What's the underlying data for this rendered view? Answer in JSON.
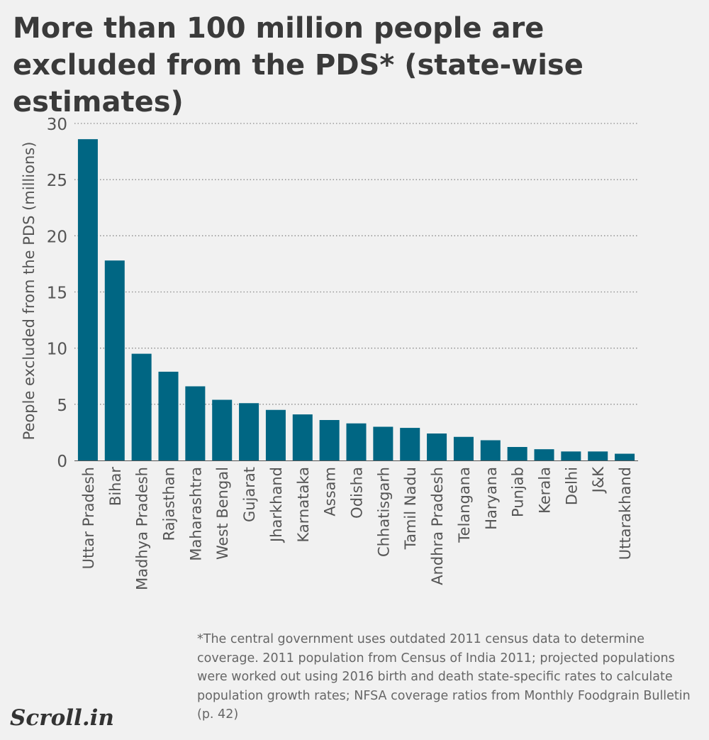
{
  "title": "More than 100 million people are excluded from the PDS* (state-wise estimates)",
  "footnote": "*The central government uses outdated 2011 census data to determine coverage. 2011 population from Census of India 2011; projected populations were worked out using 2016 birth and death state-specific rates to calculate population growth rates; NFSA coverage ratios from Monthly Foodgrain Bulletin (p. 42)",
  "brand": "Scroll.in",
  "colors": {
    "bar": "#006683",
    "grid": "#8a8a8a",
    "background": "#f1f1f1"
  },
  "chart_data": {
    "type": "bar",
    "title": "More than 100 million people are excluded from the PDS* (state-wise estimates)",
    "xlabel": "",
    "ylabel": "People excluded from the PDS (millions)",
    "ylim": [
      0,
      30
    ],
    "yticks": [
      0,
      5,
      10,
      15,
      20,
      25,
      30
    ],
    "grid": "horizontal dotted",
    "categories": [
      "Uttar Pradesh",
      "Bihar",
      "Madhya Pradesh",
      "Rajasthan",
      "Maharashtra",
      "West Bengal",
      "Gujarat",
      "Jharkhand",
      "Karnataka",
      "Assam",
      "Odisha",
      "Chhatisgarh",
      "Tamil Nadu",
      "Andhra Pradesh",
      "Telangana",
      "Haryana",
      "Punjab",
      "Kerala",
      "Delhi",
      "J&K",
      "Uttarakhand"
    ],
    "values": [
      28.6,
      17.8,
      9.5,
      7.9,
      6.6,
      5.4,
      5.1,
      4.5,
      4.1,
      3.6,
      3.3,
      3.0,
      2.9,
      2.4,
      2.1,
      1.8,
      1.2,
      1.0,
      0.8,
      0.8,
      0.6
    ]
  }
}
